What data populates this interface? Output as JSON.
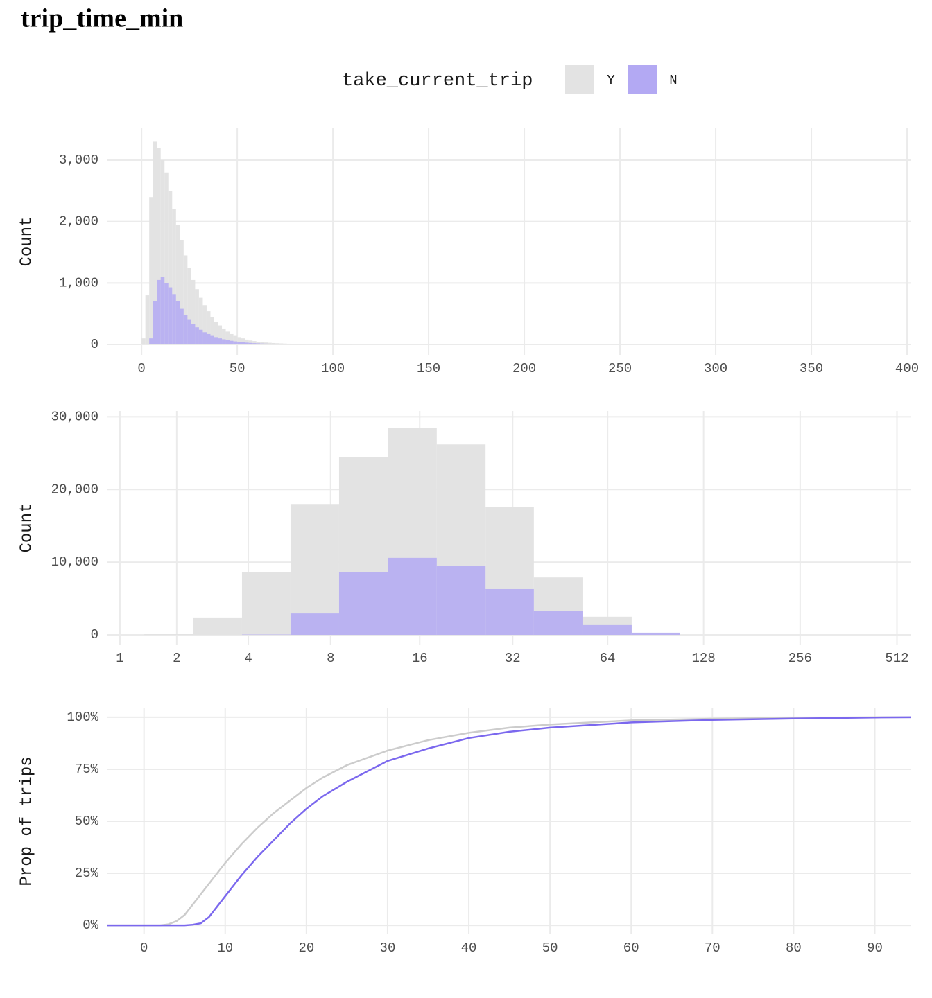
{
  "title": "trip_time_min",
  "legend": {
    "title": "take_current_trip"
  },
  "chart_data": [
    {
      "type": "histogram",
      "y_label": "Count",
      "bins": [
        0,
        2,
        4,
        6,
        8,
        10,
        12,
        14,
        16,
        18,
        20,
        22,
        24,
        26,
        28,
        30,
        32,
        34,
        36,
        38,
        40,
        42,
        44,
        46,
        48,
        50,
        52,
        54,
        56,
        58,
        60,
        62,
        64,
        66,
        68,
        70,
        72,
        74,
        76,
        78,
        80,
        82,
        84,
        86,
        88,
        90,
        92,
        94,
        96,
        98,
        100,
        102,
        104,
        106,
        108,
        110
      ],
      "series": [
        {
          "name": "Y",
          "color": "#e3e3e3",
          "values": [
            100,
            800,
            2400,
            3300,
            3200,
            3000,
            2800,
            2500,
            2200,
            1950,
            1700,
            1450,
            1250,
            1050,
            900,
            760,
            640,
            540,
            440,
            370,
            310,
            260,
            210,
            170,
            140,
            120,
            100,
            80,
            65,
            55,
            45,
            38,
            32,
            27,
            23,
            20,
            17,
            14,
            12,
            10,
            9,
            8,
            7,
            6,
            5,
            5,
            4,
            4,
            3,
            3,
            3,
            2,
            2,
            2,
            2
          ]
        },
        {
          "name": "N",
          "color": "#b3a9f3",
          "values": [
            0,
            0,
            100,
            700,
            1050,
            1100,
            1000,
            930,
            820,
            700,
            580,
            480,
            400,
            330,
            280,
            240,
            200,
            170,
            140,
            120,
            100,
            85,
            72,
            60,
            50,
            42,
            36,
            30,
            25,
            21,
            18,
            15,
            13,
            11,
            10,
            9,
            8,
            7,
            6,
            5,
            5,
            4,
            4,
            3,
            3,
            3,
            2,
            2,
            2,
            2,
            1,
            1,
            1,
            1,
            1
          ]
        }
      ],
      "xlim": [
        -17.8,
        401.8
      ],
      "xticks": [
        0,
        50,
        100,
        150,
        200,
        250,
        300,
        350,
        400
      ],
      "ylim": [
        -169,
        3519
      ],
      "yticks": [
        0,
        {
          "value": 1000,
          "label": "1,000"
        },
        {
          "value": 2000,
          "label": "2,000"
        },
        {
          "value": 3000,
          "label": "3,000"
        }
      ],
      "grid": true
    },
    {
      "type": "histogram",
      "y_label": "Count",
      "xscale": "log1p",
      "bins": [
        1.38,
        2.38,
        3.78,
        5.76,
        8.56,
        12.58,
        18.2,
        26.2,
        37.4,
        53.6,
        76.2,
        108
      ],
      "series": [
        {
          "name": "Y",
          "color": "#e3e3e3",
          "values": [
            100,
            2400,
            8600,
            18000,
            24500,
            28500,
            26200,
            17600,
            7900,
            2500,
            200
          ]
        },
        {
          "name": "N",
          "color": "#b3a9f3",
          "values": [
            0,
            0,
            50,
            2950,
            8600,
            10600,
            9500,
            6300,
            3300,
            1350,
            300
          ]
        }
      ],
      "xlim": [
        0.83,
        564
      ],
      "xticks": [
        1,
        2,
        4,
        8,
        16,
        32,
        64,
        128,
        256,
        512
      ],
      "ylim": [
        -1330,
        30800
      ],
      "yticks": [
        0,
        {
          "value": 10000,
          "label": "10,000"
        },
        {
          "value": 20000,
          "label": "20,000"
        },
        {
          "value": 30000,
          "label": "30,000"
        }
      ],
      "grid": true
    },
    {
      "type": "line",
      "y_label": "Prop of trips",
      "series": [
        {
          "name": "Y",
          "color": "#cccccc",
          "x": [
            -4.5,
            2,
            3,
            4,
            5,
            6,
            8,
            10,
            12,
            14,
            16,
            18,
            20,
            22,
            25,
            30,
            35,
            40,
            45,
            50,
            60,
            70,
            80,
            90,
            94.4
          ],
          "values": [
            0,
            0,
            0.5,
            2,
            5,
            10,
            20,
            30,
            39,
            47,
            54,
            60,
            66,
            71,
            77,
            84,
            89,
            92.5,
            95,
            96.5,
            98.5,
            99.3,
            99.7,
            100,
            100
          ]
        },
        {
          "name": "N",
          "color": "#7b68ee",
          "x": [
            -4.5,
            5,
            6,
            7,
            8,
            9,
            10,
            12,
            14,
            16,
            18,
            20,
            22,
            25,
            30,
            35,
            40,
            45,
            50,
            60,
            70,
            80,
            90,
            94.4
          ],
          "values": [
            0,
            0,
            0.3,
            1,
            4,
            9,
            14,
            24,
            33,
            41,
            49,
            56,
            62,
            69,
            79,
            85,
            90,
            93,
            95,
            97.5,
            98.7,
            99.4,
            99.9,
            100
          ]
        }
      ],
      "xlim": [
        -4.5,
        94.4
      ],
      "xticks": [
        0,
        10,
        20,
        30,
        40,
        50,
        60,
        70,
        80,
        90
      ],
      "ylim": [
        -4.3,
        104.3
      ],
      "yticks": [
        {
          "value": 0,
          "label": "0%"
        },
        {
          "value": 25,
          "label": "25%"
        },
        {
          "value": 50,
          "label": "50%"
        },
        {
          "value": 75,
          "label": "75%"
        },
        {
          "value": 100,
          "label": "100%"
        }
      ],
      "grid": true
    }
  ]
}
